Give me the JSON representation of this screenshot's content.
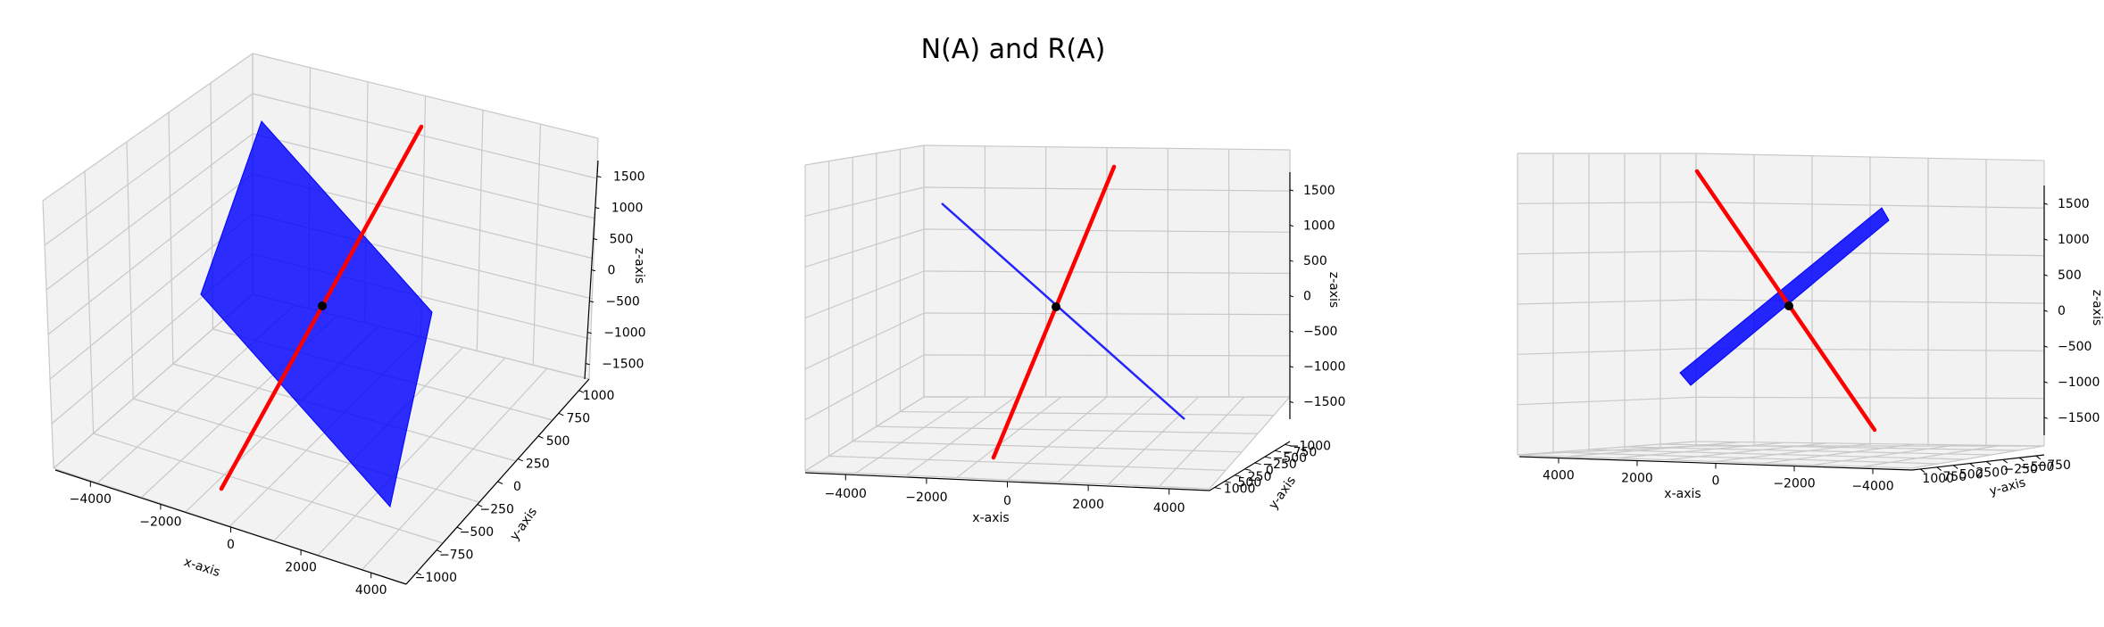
{
  "figure": {
    "title": "N(A) and R(A)"
  },
  "chart_data": [
    {
      "type": "3d-line-surface",
      "panel": 1,
      "xlabel": "x-axis",
      "ylabel": "y-axis",
      "zlabel": "z-axis",
      "xticks": [
        "−4000",
        "−2000",
        "0",
        "2000",
        "4000"
      ],
      "yticks": [
        "−1000",
        "−750",
        "−500",
        "−250",
        "0",
        "250",
        "500",
        "750",
        "1000"
      ],
      "zticks": [
        "1500",
        "1000",
        "500",
        "0",
        "−500",
        "−1000",
        "−1500"
      ],
      "series": [
        {
          "kind": "line",
          "color": "#ff0000"
        },
        {
          "kind": "surface",
          "color": "#0000ff"
        },
        {
          "kind": "point",
          "color": "#000000",
          "at": [
            0,
            0,
            0
          ]
        }
      ]
    },
    {
      "type": "3d-line-surface",
      "panel": 2,
      "xlabel": "x-axis",
      "ylabel": "y-axis",
      "zlabel": "z-axis",
      "xticks": [
        "−4000",
        "−2000",
        "0",
        "2000",
        "4000"
      ],
      "yticks": [
        "1000",
        "500",
        "250",
        "0",
        "−250",
        "−500",
        "−750",
        "−1000"
      ],
      "zticks": [
        "1500",
        "1000",
        "500",
        "0",
        "−500",
        "−1000",
        "−1500"
      ],
      "series": [
        {
          "kind": "line",
          "color": "#ff0000"
        },
        {
          "kind": "surface",
          "color": "#0000ff"
        },
        {
          "kind": "point",
          "color": "#000000",
          "at": [
            0,
            0,
            0
          ]
        }
      ]
    },
    {
      "type": "3d-line-surface",
      "panel": 3,
      "xlabel": "x-axis",
      "ylabel": "y-axis",
      "zlabel": "z-axis",
      "xticks": [
        "4000",
        "2000",
        "0",
        "−2000",
        "−4000"
      ],
      "yticks": [
        "1000",
        "750",
        "500",
        "250",
        "0",
        "−250",
        "−500",
        "−750"
      ],
      "zticks": [
        "1500",
        "1000",
        "500",
        "0",
        "−500",
        "−1000",
        "−1500"
      ],
      "series": [
        {
          "kind": "line",
          "color": "#ff0000"
        },
        {
          "kind": "surface",
          "color": "#0000ff"
        },
        {
          "kind": "point",
          "color": "#000000",
          "at": [
            0,
            0,
            0
          ]
        }
      ]
    }
  ]
}
